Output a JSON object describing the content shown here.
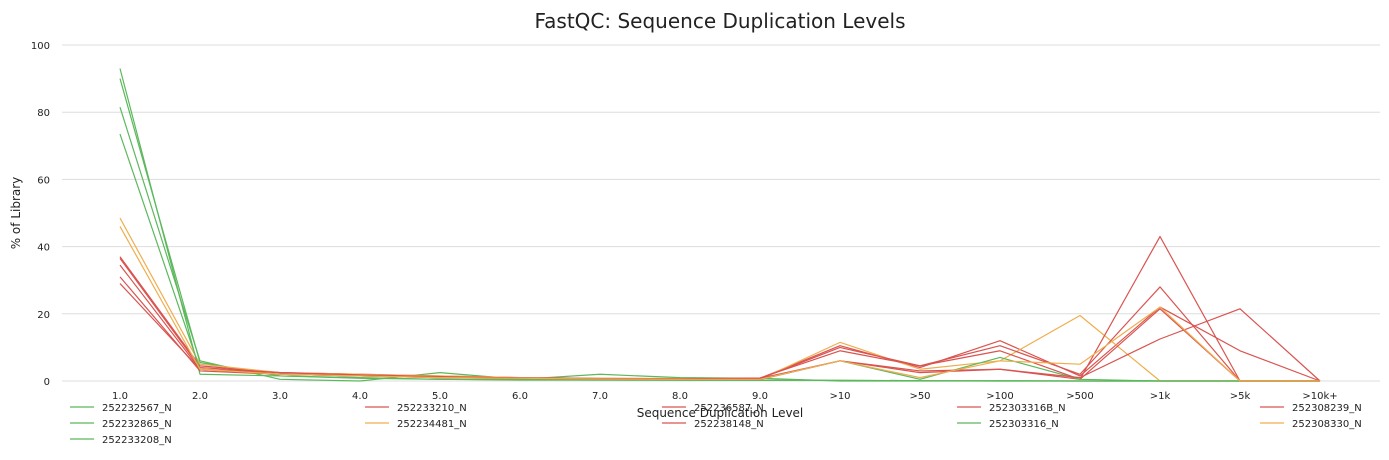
{
  "chart_data": {
    "type": "line",
    "title": "FastQC: Sequence Duplication Levels",
    "xlabel": "Sequence Duplication Level",
    "ylabel": "% of Library",
    "categories": [
      "1.0",
      "2.0",
      "3.0",
      "4.0",
      "5.0",
      "6.0",
      "7.0",
      "8.0",
      "9.0",
      ">10",
      ">50",
      ">100",
      ">500",
      ">1k",
      ">5k",
      ">10k+"
    ],
    "ylim": [
      0,
      100
    ],
    "yticks": [
      0,
      20,
      40,
      60,
      80,
      100
    ],
    "grid": true,
    "legend_position": "bottom",
    "series": [
      {
        "name": "252232567_N",
        "color": "#5cb85c",
        "values": [
          93.0,
          2.0,
          1.5,
          0.8,
          0.5,
          0.3,
          0.3,
          0.3,
          0.2,
          0.2,
          0.1,
          0.1,
          0.0,
          0.0,
          0.0,
          0.0
        ]
      },
      {
        "name": "252232865_N",
        "color": "#5cb85c",
        "values": [
          90.0,
          5.5,
          1.5,
          1.0,
          0.5,
          0.4,
          0.3,
          0.2,
          0.2,
          0.2,
          0.1,
          0.0,
          0.0,
          0.0,
          0.0,
          0.0
        ]
      },
      {
        "name": "252233208_N",
        "color": "#5cb85c",
        "values": [
          81.5,
          6.0,
          0.5,
          0.0,
          2.5,
          0.5,
          2.0,
          1.0,
          0.8,
          0.0,
          0.0,
          0.0,
          0.0,
          0.0,
          0.0,
          0.0
        ]
      },
      {
        "name": "252233210_N",
        "color": "#d9534f",
        "values": [
          37.0,
          4.5,
          2.5,
          2.0,
          1.5,
          1.0,
          0.8,
          0.7,
          0.8,
          10.5,
          4.0,
          12.0,
          1.5,
          22.0,
          9.0,
          0.0
        ]
      },
      {
        "name": "252234481_N",
        "color": "#f0ad4e",
        "values": [
          48.5,
          5.0,
          2.5,
          2.0,
          1.5,
          1.0,
          0.8,
          0.7,
          0.5,
          11.5,
          3.5,
          6.0,
          19.5,
          0.0,
          0.0,
          0.0
        ]
      },
      {
        "name": "252236587_N",
        "color": "#d9534f",
        "values": [
          36.5,
          4.0,
          2.5,
          1.8,
          1.2,
          0.9,
          0.7,
          0.6,
          0.7,
          10.0,
          4.5,
          10.5,
          2.0,
          28.0,
          0.0,
          0.0
        ]
      },
      {
        "name": "252238148_N",
        "color": "#d9534f",
        "values": [
          29.0,
          3.5,
          2.0,
          1.5,
          1.2,
          0.8,
          0.6,
          0.6,
          0.9,
          9.0,
          4.5,
          9.0,
          0.5,
          43.0,
          0.0,
          0.0
        ]
      },
      {
        "name": "252303316B_N",
        "color": "#d9534f",
        "values": [
          34.5,
          3.5,
          2.5,
          1.8,
          1.3,
          0.9,
          0.7,
          0.6,
          0.8,
          6.0,
          2.5,
          3.5,
          0.5,
          21.5,
          0.0,
          0.0
        ]
      },
      {
        "name": "252303316_N",
        "color": "#5cb85c",
        "values": [
          73.5,
          3.5,
          2.0,
          1.5,
          1.0,
          0.7,
          0.6,
          0.5,
          0.4,
          6.0,
          0.5,
          7.0,
          0.5,
          0.0,
          0.0,
          0.0
        ]
      },
      {
        "name": "252308239_N",
        "color": "#d9534f",
        "values": [
          31.0,
          3.0,
          2.0,
          1.5,
          1.0,
          0.8,
          0.6,
          0.5,
          0.5,
          6.0,
          3.0,
          3.5,
          1.0,
          12.5,
          21.5,
          0.0
        ]
      },
      {
        "name": "252308330_N",
        "color": "#f0ad4e",
        "values": [
          46.0,
          3.5,
          2.0,
          1.5,
          1.0,
          0.8,
          0.6,
          0.5,
          0.5,
          6.0,
          1.0,
          6.0,
          5.0,
          22.0,
          0.0,
          0.0
        ]
      }
    ]
  }
}
